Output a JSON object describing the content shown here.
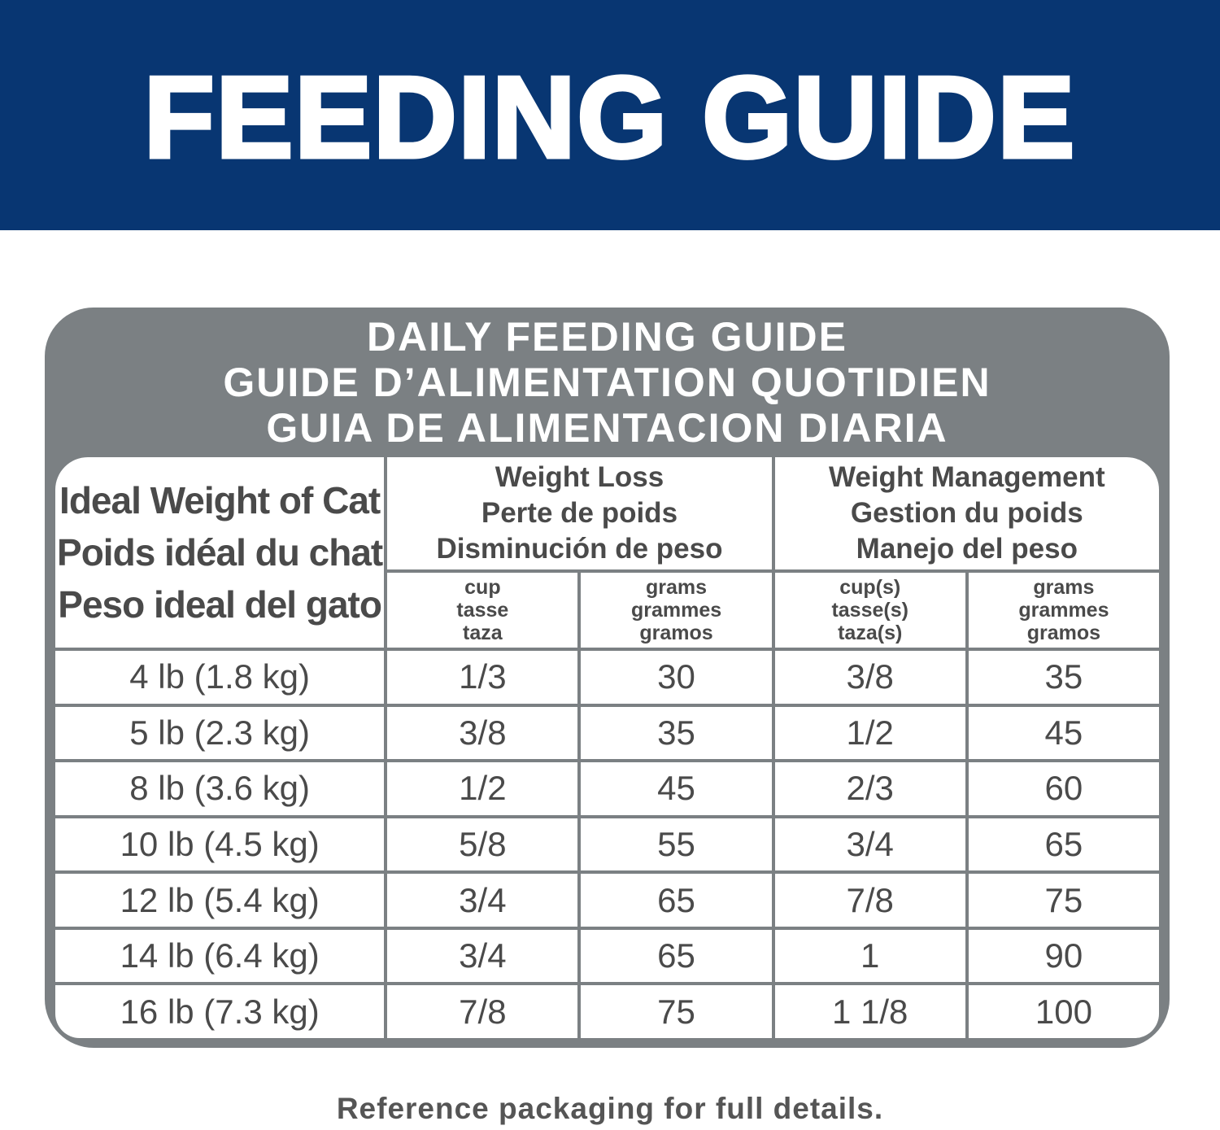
{
  "header": {
    "title": "FEEDING GUIDE"
  },
  "table": {
    "title_lines": [
      "DAILY FEEDING GUIDE",
      "GUIDE D’ALIMENTATION QUOTIDIEN",
      "GUIA DE ALIMENTACION DIARIA"
    ],
    "first_column": [
      "Ideal Weight of Cat",
      "Poids idéal du chat",
      "Peso ideal del gato"
    ],
    "groups": [
      {
        "lines": [
          "Weight Loss",
          "Perte de poids",
          "Disminución de peso"
        ],
        "units": [
          [
            "cup",
            "tasse",
            "taza"
          ],
          [
            "grams",
            "grammes",
            "gramos"
          ]
        ]
      },
      {
        "lines": [
          "Weight Management",
          "Gestion du poids",
          "Manejo del peso"
        ],
        "units": [
          [
            "cup(s)",
            "tasse(s)",
            "taza(s)"
          ],
          [
            "grams",
            "grammes",
            "gramos"
          ]
        ]
      }
    ],
    "rows": [
      [
        "4 lb (1.8 kg)",
        "1/3",
        "30",
        "3/8",
        "35"
      ],
      [
        "5 lb (2.3 kg)",
        "3/8",
        "35",
        "1/2",
        "45"
      ],
      [
        "8 lb (3.6 kg)",
        "1/2",
        "45",
        "2/3",
        "60"
      ],
      [
        "10 lb (4.5 kg)",
        "5/8",
        "55",
        "3/4",
        "65"
      ],
      [
        "12 lb (5.4 kg)",
        "3/4",
        "65",
        "7/8",
        "75"
      ],
      [
        "14 lb (6.4 kg)",
        "3/4",
        "65",
        "1",
        "90"
      ],
      [
        "16 lb (7.3 kg)",
        "7/8",
        "75",
        "1 1/8",
        "100"
      ]
    ]
  },
  "footer": {
    "note": "Reference packaging for full details."
  }
}
